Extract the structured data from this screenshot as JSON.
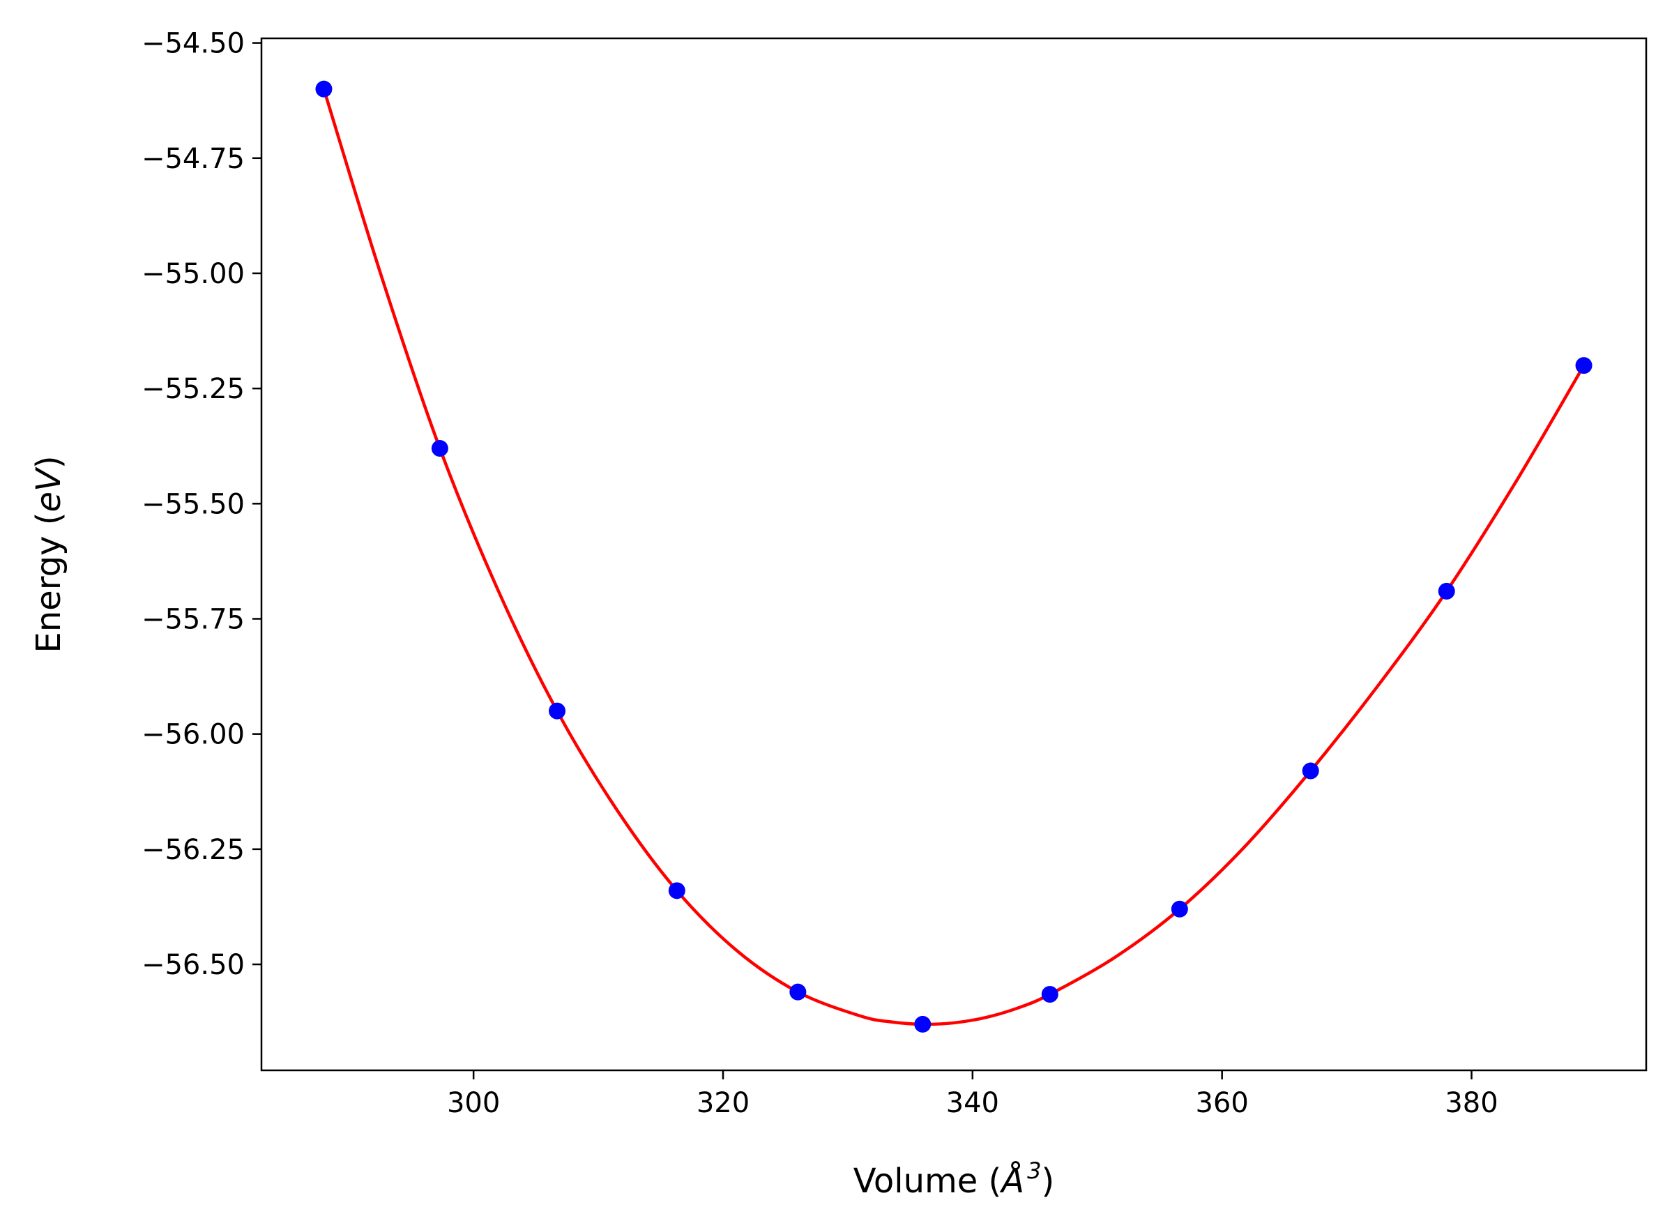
{
  "chart_data": {
    "type": "scatter",
    "xlabel": {
      "prefix": "Volume (",
      "unit": "Å",
      "exponent": "3",
      "suffix": ")"
    },
    "ylabel": {
      "prefix": "Energy (",
      "unit": "eV",
      "suffix": ")"
    },
    "xlim": [
      283,
      394
    ],
    "ylim": [
      -56.73,
      -54.49
    ],
    "xticks": [
      300,
      320,
      340,
      360,
      380
    ],
    "xtick_labels": [
      "300",
      "320",
      "340",
      "360",
      "380"
    ],
    "yticks": [
      -54.5,
      -54.75,
      -55.0,
      -55.25,
      -55.5,
      -55.75,
      -56.0,
      -56.25,
      -56.5
    ],
    "ytick_labels": [
      "−54.50",
      "−54.75",
      "−55.00",
      "−55.25",
      "−55.50",
      "−55.75",
      "−56.00",
      "−56.25",
      "−56.50"
    ],
    "grid": false,
    "series": [
      {
        "kind": "points",
        "color": "#0000ff",
        "x": [
          288.0,
          297.3,
          306.7,
          316.3,
          326.0,
          336.0,
          346.2,
          356.6,
          367.1,
          378.0,
          389.0
        ],
        "y": [
          -54.6,
          -55.38,
          -55.95,
          -56.34,
          -56.56,
          -56.63,
          -56.565,
          -56.38,
          -56.08,
          -55.69,
          -55.2
        ]
      },
      {
        "kind": "fit-curve",
        "color": "#ff0000",
        "x": [
          288.0,
          292.6,
          297.3,
          302.0,
          306.7,
          311.5,
          316.3,
          321.1,
          326.0,
          331.0,
          333.5,
          336.0,
          338.5,
          341.1,
          343.6,
          346.2,
          351.4,
          356.6,
          361.8,
          367.1,
          372.5,
          378.0,
          383.5,
          389.0
        ],
        "y": [
          -54.6,
          -55.005,
          -55.38,
          -55.69,
          -55.95,
          -56.165,
          -56.34,
          -56.47,
          -56.56,
          -56.612,
          -56.625,
          -56.63,
          -56.627,
          -56.615,
          -56.595,
          -56.565,
          -56.485,
          -56.38,
          -56.245,
          -56.08,
          -55.895,
          -55.69,
          -55.455,
          -55.2
        ]
      }
    ]
  }
}
